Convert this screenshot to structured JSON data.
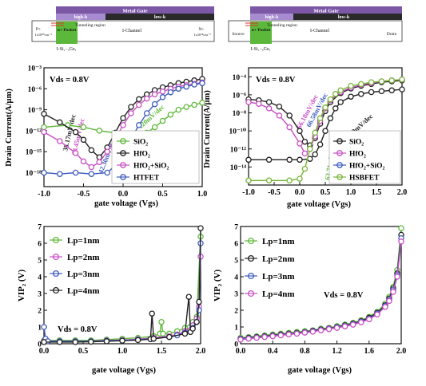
{
  "colors": {
    "metal_gate": "#7b57a6",
    "high_k": "#a78bd0",
    "low_k": "#2a2a2a",
    "pocket": "#5cb83a",
    "sio2": "#5fb83a",
    "hfo2": "#222222",
    "hfo2sio2": "#c84fc4",
    "htfet": "#3f5cbd",
    "hsbfet": "#7ab63c",
    "lp1": "#5fb83a",
    "lp2": "#c84fc4",
    "lp3": "#3f5cbd",
    "lp4": "#222222"
  },
  "devices": [
    {
      "metal_gate": "Metal Gate",
      "high_k": "high-k",
      "low_k": "low-k",
      "tunneling_region": "Tunneling region",
      "channel": "I-Channel",
      "pocket": "n+ Pocket",
      "left_contact": "P+",
      "left_doping": "1x10²⁰cm⁻³",
      "right_contact": "N+",
      "right_doping": "1x10¹⁸cm⁻³",
      "pocket_material": "I-Si₁₋ₓGeₓ"
    },
    {
      "metal_gate": "Metal Gate",
      "high_k": "high-k",
      "low_k": "low-k",
      "tunneling_region": "Tunneling region",
      "channel": "I-Channel",
      "pocket": "n+ Pocket",
      "left_contact": "Source",
      "right_contact": "Drain",
      "pocket_material": "I-Si₁₋ₓGeₓ"
    }
  ],
  "chart_data": [
    {
      "id": "a",
      "type": "line",
      "xlabel": "gate voltage (Vgs)",
      "ylabel": "Drain Current(A/µm)",
      "xlim": [
        -1.0,
        1.0
      ],
      "ylim_log10": [
        -20,
        -3
      ],
      "xticks": [
        "-1.0",
        "-0.5",
        "0.0",
        "0.5",
        "1.0"
      ],
      "yticks": [
        "10⁻¹⁸",
        "10⁻¹⁵",
        "10⁻¹²",
        "10⁻⁹",
        "10⁻⁶",
        "10⁻³"
      ],
      "annotation": "Vds = 0.8V",
      "slope_labels": [
        "38.17mV/dec",
        "38.45mV/dec",
        "42.30mV/dec",
        "120mV/dec"
      ],
      "legend_position": "bottom-right",
      "series": [
        {
          "name": "SiO₂",
          "color_key": "sio2",
          "marker": "circle",
          "x": [
            -1.0,
            -0.7,
            -0.5,
            -0.3,
            -0.1,
            0.0,
            0.1,
            0.2,
            0.3,
            0.4,
            0.5,
            0.6,
            0.7,
            0.8,
            0.9,
            1.0
          ],
          "log10y": [
            -11.5,
            -11.2,
            -11.5,
            -12.0,
            -12.3,
            -12.8,
            -13.4,
            -13.0,
            -12.3,
            -11.5,
            -10.6,
            -9.7,
            -9.0,
            -8.6,
            -8.3,
            -8.0
          ]
        },
        {
          "name": "HfO₂",
          "color_key": "hfo2",
          "marker": "circle",
          "x": [
            -1.0,
            -0.8,
            -0.6,
            -0.5,
            -0.4,
            -0.3,
            -0.2,
            -0.1,
            0.0,
            0.1,
            0.2,
            0.3,
            0.4,
            0.5,
            0.6,
            0.7,
            0.8,
            0.9,
            1.0
          ],
          "log10y": [
            -9.6,
            -10.8,
            -12.2,
            -13.3,
            -14.8,
            -15.8,
            -14.4,
            -12.3,
            -10.2,
            -8.6,
            -7.5,
            -6.8,
            -6.2,
            -5.8,
            -5.5,
            -5.2,
            -5.0,
            -4.8,
            -4.6
          ]
        },
        {
          "name": "HfO₂+SiO₂",
          "color_key": "hfo2sio2",
          "marker": "circle",
          "x": [
            -1.0,
            -0.8,
            -0.6,
            -0.5,
            -0.4,
            -0.3,
            -0.2,
            -0.1,
            0.0,
            0.1,
            0.2,
            0.3,
            0.4,
            0.5,
            0.6,
            0.7,
            0.8,
            0.9,
            1.0
          ],
          "log10y": [
            -12.2,
            -13.5,
            -15.2,
            -16.4,
            -17.2,
            -16.5,
            -15.0,
            -13.2,
            -11.2,
            -9.5,
            -8.3,
            -7.4,
            -6.8,
            -6.4,
            -6.0,
            -5.7,
            -5.5,
            -5.3,
            -5.1
          ]
        },
        {
          "name": "HTFET",
          "color_key": "htfet",
          "marker": "circle",
          "x": [
            -1.0,
            -0.8,
            -0.6,
            -0.4,
            -0.2,
            -0.1,
            0.0,
            0.1,
            0.2,
            0.3,
            0.4,
            0.5,
            0.6,
            0.7,
            0.8,
            0.9,
            1.0
          ],
          "log10y": [
            -18.0,
            -18.2,
            -18.0,
            -18.2,
            -18.0,
            -17.0,
            -15.4,
            -13.2,
            -11.2,
            -9.5,
            -8.2,
            -7.2,
            -6.5,
            -6.0,
            -5.7,
            -5.4,
            -5.2
          ]
        }
      ]
    },
    {
      "id": "b",
      "type": "line",
      "xlabel": "gate voltage (Vgs)",
      "ylabel": "Drain Current(A/µm)",
      "xlim": [
        -1.0,
        2.0
      ],
      "ylim_log10": [
        -16,
        -3
      ],
      "xticks": [
        "-1.0",
        "-0.5",
        "0.0",
        "0.5",
        "1.0",
        "1.5",
        "2.0"
      ],
      "yticks": [
        "10⁻¹⁴",
        "10⁻¹²",
        "10⁻¹⁰",
        "10⁻⁸",
        "10⁻⁶",
        "10⁻⁴"
      ],
      "annotation": "Vds = 0.8V",
      "slope_labels": [
        "66.18mV/dec",
        "66.58mV/dec",
        "67.89mV/dec",
        "63.71mV/dec"
      ],
      "legend_position": "bottom-right",
      "series": [
        {
          "name": "SiO₂",
          "color_key": "hfo2",
          "marker": "circle",
          "x": [
            -1.0,
            -0.6,
            -0.2,
            0.0,
            0.2,
            0.3,
            0.4,
            0.5,
            0.6,
            0.7,
            0.8,
            1.0,
            1.2,
            1.4,
            1.6,
            1.8,
            2.0
          ],
          "log10y": [
            -13.2,
            -13.2,
            -13.2,
            -13.2,
            -13.1,
            -12.6,
            -11.5,
            -10.0,
            -8.6,
            -7.5,
            -6.8,
            -6.2,
            -5.9,
            -5.7,
            -5.6,
            -5.5,
            -5.4
          ]
        },
        {
          "name": "HfO₂",
          "color_key": "hfo2",
          "marker": "circle",
          "x": [
            -1.0,
            -0.8,
            -0.6,
            -0.4,
            -0.2,
            0.0,
            0.1,
            0.2,
            0.3,
            0.4,
            0.5,
            0.6,
            0.8,
            1.0,
            1.2,
            1.4,
            1.6,
            1.8,
            2.0
          ],
          "log10y": [
            -6.5,
            -6.6,
            -6.8,
            -7.3,
            -8.3,
            -10.0,
            -11.2,
            -11.6,
            -10.8,
            -9.2,
            -7.8,
            -6.8,
            -5.8,
            -5.3,
            -5.0,
            -4.8,
            -4.6,
            -4.5,
            -4.4
          ]
        },
        {
          "name": "HfO₂+SiO₂",
          "color_key": "hfo2sio2",
          "marker": "circle",
          "x": [
            -1.0,
            -0.8,
            -0.6,
            -0.4,
            -0.2,
            0.0,
            0.1,
            0.2,
            0.3,
            0.4,
            0.5,
            0.6,
            0.8,
            1.0,
            1.2,
            1.4,
            1.6,
            1.8,
            2.0
          ],
          "log10y": [
            -6.8,
            -7.0,
            -7.5,
            -8.3,
            -9.6,
            -11.4,
            -12.5,
            -12.0,
            -10.6,
            -8.9,
            -7.5,
            -6.6,
            -5.7,
            -5.2,
            -4.9,
            -4.7,
            -4.5,
            -4.4,
            -4.3
          ]
        },
        {
          "name": "HSBFET",
          "color_key": "hsbfet",
          "marker": "circle",
          "x": [
            -1.0,
            -0.6,
            -0.2,
            0.0,
            0.1,
            0.2,
            0.3,
            0.4,
            0.5,
            0.6,
            0.7,
            0.8,
            1.0,
            1.2,
            1.4,
            1.6,
            1.8,
            2.0
          ],
          "log10y": [
            -15.5,
            -15.5,
            -15.5,
            -15.3,
            -14.2,
            -12.0,
            -10.2,
            -8.6,
            -7.4,
            -6.5,
            -5.9,
            -5.5,
            -5.0,
            -4.8,
            -4.6,
            -4.5,
            -4.4,
            -4.3
          ]
        }
      ]
    },
    {
      "id": "c",
      "type": "line",
      "xlabel": "gate voltage (Vgs)",
      "ylabel": "VIP₂ (V)",
      "xlim": [
        0.0,
        2.0
      ],
      "ylim": [
        0,
        7
      ],
      "xticks": [
        "0.0",
        "0.5",
        "1.0",
        "1.5",
        "2.0"
      ],
      "yticks": [
        "0",
        "1",
        "2",
        "3",
        "4",
        "5",
        "6",
        "7"
      ],
      "annotation": "Vds = 0.8V",
      "legend_position": "top-left",
      "series": [
        {
          "name": "Lp=1nm",
          "color_key": "lp1",
          "marker": "circle",
          "x": [
            0.0,
            0.2,
            0.4,
            0.6,
            0.8,
            1.0,
            1.2,
            1.4,
            1.48,
            1.5,
            1.52,
            1.6,
            1.7,
            1.8,
            1.9,
            1.95,
            2.0
          ],
          "y": [
            0.2,
            0.2,
            0.2,
            0.2,
            0.25,
            0.3,
            0.35,
            0.45,
            0.6,
            1.3,
            0.6,
            0.6,
            0.75,
            0.95,
            1.3,
            1.6,
            6.4
          ]
        },
        {
          "name": "Lp=2nm",
          "color_key": "lp2",
          "marker": "circle",
          "x": [
            0.0,
            0.2,
            0.4,
            0.6,
            0.8,
            1.0,
            1.2,
            1.4,
            1.6,
            1.7,
            1.8,
            1.9,
            1.95,
            1.98,
            2.0
          ],
          "y": [
            0.15,
            0.15,
            0.15,
            0.15,
            0.2,
            0.22,
            0.27,
            0.35,
            0.45,
            0.55,
            0.75,
            1.1,
            1.5,
            2.2,
            5.2
          ]
        },
        {
          "name": "Lp=3nm",
          "color_key": "lp3",
          "marker": "circle",
          "x": [
            0.0,
            0.02,
            0.05,
            0.2,
            0.4,
            0.6,
            0.8,
            1.0,
            1.2,
            1.4,
            1.6,
            1.7,
            1.8,
            1.9,
            1.95,
            1.98,
            2.0
          ],
          "y": [
            1.0,
            0.3,
            0.15,
            0.15,
            0.15,
            0.15,
            0.18,
            0.2,
            0.25,
            0.3,
            0.4,
            0.5,
            0.65,
            0.95,
            1.3,
            2.0,
            6.0
          ]
        },
        {
          "name": "Lp=4nm",
          "color_key": "lp4",
          "marker": "circle",
          "x": [
            0.0,
            0.2,
            0.4,
            0.6,
            0.8,
            1.0,
            1.2,
            1.36,
            1.38,
            1.4,
            1.6,
            1.8,
            1.85,
            1.87,
            1.9,
            1.95,
            1.98,
            2.0
          ],
          "y": [
            0.1,
            0.1,
            0.1,
            0.12,
            0.15,
            0.18,
            0.22,
            0.27,
            1.8,
            0.3,
            0.4,
            0.6,
            2.8,
            0.7,
            0.9,
            1.3,
            2.5,
            6.9
          ]
        }
      ]
    },
    {
      "id": "d",
      "type": "line",
      "xlabel": "gate voltage (Vgs)",
      "ylabel": "VIP₂ (V)",
      "xlim": [
        0.0,
        2.0
      ],
      "ylim": [
        0,
        7
      ],
      "xticks": [
        "0.0",
        "0.4",
        "0.8",
        "1.2",
        "1.6",
        "2.0"
      ],
      "yticks": [
        "0",
        "1",
        "2",
        "3",
        "4",
        "5",
        "6",
        "7"
      ],
      "annotation": "Vds = 0.8V",
      "legend_position": "top-left",
      "series": [
        {
          "name": "Lp=1nm",
          "color_key": "lp1",
          "marker": "circle",
          "x": [
            0.0,
            0.1,
            0.2,
            0.3,
            0.4,
            0.5,
            0.6,
            0.7,
            0.8,
            0.9,
            1.0,
            1.1,
            1.2,
            1.3,
            1.4,
            1.5,
            1.6,
            1.7,
            1.8,
            1.85,
            1.9,
            1.95,
            2.0
          ],
          "y": [
            0.35,
            0.4,
            0.45,
            0.5,
            0.55,
            0.6,
            0.65,
            0.7,
            0.75,
            0.8,
            0.9,
            0.95,
            1.05,
            1.15,
            1.25,
            1.4,
            1.6,
            1.9,
            2.4,
            2.8,
            3.4,
            4.4,
            6.9
          ]
        },
        {
          "name": "Lp=2nm",
          "color_key": "lp4",
          "marker": "circle",
          "x": [
            0.0,
            0.1,
            0.2,
            0.3,
            0.4,
            0.5,
            0.6,
            0.7,
            0.8,
            0.9,
            1.0,
            1.1,
            1.2,
            1.3,
            1.4,
            1.5,
            1.6,
            1.7,
            1.8,
            1.85,
            1.9,
            1.95,
            2.0
          ],
          "y": [
            0.3,
            0.35,
            0.4,
            0.45,
            0.5,
            0.55,
            0.6,
            0.65,
            0.7,
            0.78,
            0.85,
            0.92,
            1.0,
            1.1,
            1.2,
            1.35,
            1.55,
            1.85,
            2.3,
            2.7,
            3.3,
            4.2,
            6.5
          ]
        },
        {
          "name": "Lp=3nm",
          "color_key": "lp3",
          "marker": "circle",
          "x": [
            0.0,
            0.1,
            0.2,
            0.3,
            0.4,
            0.5,
            0.6,
            0.7,
            0.8,
            0.9,
            1.0,
            1.1,
            1.2,
            1.3,
            1.4,
            1.5,
            1.6,
            1.7,
            1.8,
            1.85,
            1.9,
            1.95,
            2.0
          ],
          "y": [
            0.28,
            0.32,
            0.37,
            0.42,
            0.47,
            0.52,
            0.57,
            0.62,
            0.68,
            0.75,
            0.82,
            0.9,
            0.98,
            1.07,
            1.17,
            1.32,
            1.5,
            1.8,
            2.25,
            2.6,
            3.2,
            4.1,
            6.3
          ]
        },
        {
          "name": "Lp=4nm",
          "color_key": "lp2",
          "marker": "circle",
          "x": [
            0.0,
            0.1,
            0.2,
            0.3,
            0.4,
            0.5,
            0.6,
            0.7,
            0.8,
            0.9,
            1.0,
            1.1,
            1.2,
            1.3,
            1.4,
            1.5,
            1.6,
            1.7,
            1.8,
            1.85,
            1.9,
            1.95,
            2.0
          ],
          "y": [
            0.25,
            0.3,
            0.35,
            0.4,
            0.45,
            0.5,
            0.55,
            0.6,
            0.66,
            0.72,
            0.8,
            0.87,
            0.95,
            1.04,
            1.14,
            1.28,
            1.46,
            1.75,
            2.2,
            2.55,
            3.1,
            4.0,
            6.1
          ]
        }
      ]
    }
  ]
}
